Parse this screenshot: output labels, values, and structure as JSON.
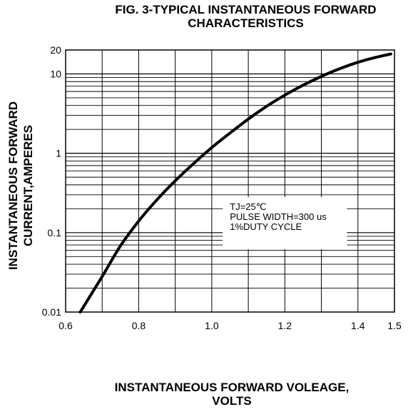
{
  "chart_data": {
    "type": "line",
    "title_lines": [
      "FIG. 3-TYPICAL INSTANTANEOUS FORWARD",
      "CHARACTERISTICS"
    ],
    "xlabel_lines": [
      "INSTANTANEOUS FORWARD VOLEAGE,",
      "VOLTS"
    ],
    "ylabel_lines": [
      "INSTANTANEOUS FORWARD",
      "CURRENT,AMPERES"
    ],
    "xlim": [
      0.6,
      1.5
    ],
    "ylim": [
      0.01,
      20
    ],
    "yscale": "log",
    "grid": true,
    "x_ticks": [
      "0.6",
      "0.8",
      "1.0",
      "1.2",
      "1.4",
      "1.5"
    ],
    "x_tick_values": [
      0.6,
      0.8,
      1.0,
      1.2,
      1.4,
      1.5
    ],
    "y_ticks": [
      "20",
      "10",
      "1",
      "0.1",
      "0.01"
    ],
    "y_tick_values": [
      20,
      10,
      1,
      0.1,
      0.01
    ],
    "annotation_lines": [
      "TJ=25℃",
      "PULSE WIDTH=300 us",
      "1%DUTY CYCLE"
    ],
    "series": [
      {
        "x": [
          0.64,
          0.7,
          0.75,
          0.8,
          0.85,
          0.9,
          0.95,
          1.0,
          1.05,
          1.1,
          1.15,
          1.2,
          1.25,
          1.3,
          1.35,
          1.4,
          1.45,
          1.49
        ],
        "y": [
          0.01,
          0.028,
          0.068,
          0.14,
          0.26,
          0.45,
          0.74,
          1.18,
          1.8,
          2.7,
          3.9,
          5.4,
          7.2,
          9.3,
          11.6,
          14.0,
          16.2,
          17.8
        ]
      }
    ]
  }
}
